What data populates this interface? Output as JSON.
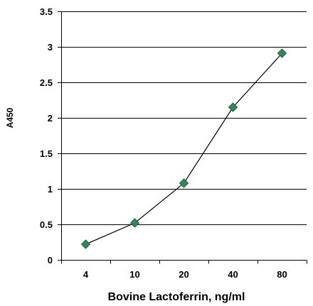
{
  "chart_data": {
    "type": "line",
    "title": "",
    "xlabel": "Bovine Lactoferrin, ng/ml",
    "ylabel": "A450",
    "categories": [
      "4",
      "10",
      "20",
      "40",
      "80"
    ],
    "series": [
      {
        "values": [
          0.22,
          0.52,
          1.08,
          2.15,
          2.91
        ]
      }
    ],
    "ylim": [
      0,
      3.5
    ],
    "y_ticks": [
      "0",
      "0.5",
      "1",
      "1.5",
      "2",
      "2.5",
      "3",
      "3.5"
    ],
    "grid": "horizontal",
    "legend": "none",
    "colors": {
      "line": "#000000",
      "marker": "#2e8b57",
      "marker_edge": "#1f5f3c",
      "grid": "#000000"
    },
    "marker": "diamond"
  }
}
